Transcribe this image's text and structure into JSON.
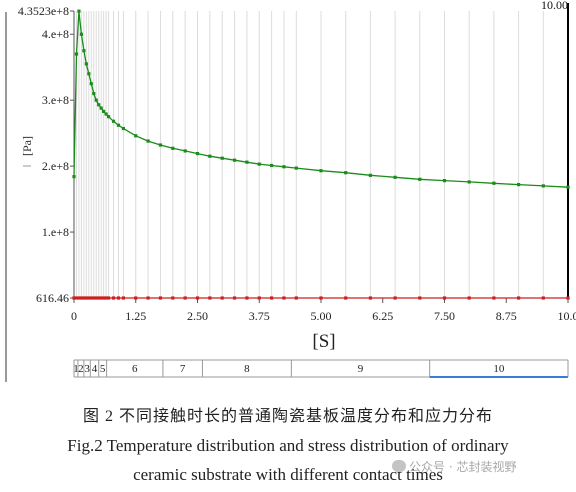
{
  "chart_data": {
    "type": "line",
    "ylabel": "[Pa]",
    "xlabel": "[S]",
    "xlim": [
      0,
      10
    ],
    "ylim": [
      616.46,
      435230000
    ],
    "x_ticks": [
      "0",
      "1.25",
      "2.50",
      "3.75",
      "5.00",
      "6.25",
      "7.50",
      "8.75",
      "10.0"
    ],
    "y_ticks": [
      {
        "label": "4.3523e+8",
        "value": 435230000
      },
      {
        "label": "4.e+8",
        "value": 400000000
      },
      {
        "label": "3.e+8",
        "value": 300000000
      },
      {
        "label": "2.e+8",
        "value": 200000000
      },
      {
        "label": "1.e+8",
        "value": 100000000
      },
      {
        "label": "616.46",
        "value": 616.46
      }
    ],
    "time_marker": "10.00",
    "grid": true,
    "series": [
      {
        "color": "#1a8c1a",
        "x": [
          0,
          0.05,
          0.1,
          0.15,
          0.2,
          0.25,
          0.3,
          0.35,
          0.4,
          0.45,
          0.5,
          0.55,
          0.6,
          0.65,
          0.7,
          0.8,
          0.9,
          1.0,
          1.25,
          1.5,
          1.75,
          2.0,
          2.25,
          2.5,
          2.75,
          3.0,
          3.25,
          3.5,
          3.75,
          4.0,
          4.25,
          4.5,
          5.0,
          5.5,
          6.0,
          6.5,
          7.0,
          7.5,
          8.0,
          8.5,
          9.0,
          9.5,
          10.0
        ],
        "values": [
          184000000,
          370000000,
          435000000,
          400000000,
          375000000,
          355000000,
          340000000,
          325000000,
          310000000,
          300000000,
          293000000,
          288000000,
          283000000,
          279000000,
          275000000,
          268000000,
          262000000,
          257000000,
          246000000,
          238000000,
          232000000,
          227000000,
          223000000,
          219000000,
          215000000,
          212000000,
          209000000,
          206000000,
          203000000,
          201000000,
          199000000,
          197000000,
          193000000,
          190000000,
          186000000,
          183000000,
          180000000,
          178000000,
          176000000,
          174000000,
          172000000,
          170000000,
          168000000
        ]
      },
      {
        "color": "#cc1f1f",
        "x": [
          0,
          0.05,
          0.1,
          0.15,
          0.2,
          0.25,
          0.3,
          0.35,
          0.4,
          0.45,
          0.5,
          0.55,
          0.6,
          0.65,
          0.7,
          0.8,
          0.9,
          1.0,
          1.25,
          1.5,
          1.75,
          2.0,
          2.25,
          2.5,
          2.75,
          3.0,
          3.25,
          3.5,
          3.75,
          4.0,
          4.25,
          4.5,
          5.0,
          5.5,
          6.0,
          6.5,
          7.0,
          7.5,
          8.0,
          8.5,
          9.0,
          9.5,
          10.0
        ],
        "values": [
          616.46,
          616.46,
          616.46,
          616.46,
          616.46,
          616.46,
          616.46,
          616.46,
          616.46,
          616.46,
          616.46,
          616.46,
          616.46,
          616.46,
          616.46,
          616.46,
          616.46,
          616.46,
          616.46,
          616.46,
          616.46,
          616.46,
          616.46,
          616.46,
          616.46,
          616.46,
          616.46,
          616.46,
          616.46,
          616.46,
          616.46,
          616.46,
          616.46,
          616.46,
          616.46,
          616.46,
          616.46,
          616.46,
          616.46,
          616.46,
          616.46,
          616.46,
          616.46
        ]
      }
    ],
    "timeline_steps": [
      {
        "label": "1",
        "start": 0.0,
        "end": 0.08
      },
      {
        "label": "2",
        "start": 0.08,
        "end": 0.2
      },
      {
        "label": "3",
        "start": 0.2,
        "end": 0.33
      },
      {
        "label": "4",
        "start": 0.33,
        "end": 0.5
      },
      {
        "label": "5",
        "start": 0.5,
        "end": 0.66
      },
      {
        "label": "6",
        "start": 0.66,
        "end": 1.8
      },
      {
        "label": "7",
        "start": 1.8,
        "end": 2.6
      },
      {
        "label": "8",
        "start": 2.6,
        "end": 4.4
      },
      {
        "label": "9",
        "start": 4.4,
        "end": 7.2
      },
      {
        "label": "10",
        "start": 7.2,
        "end": 10.0
      }
    ]
  },
  "caption": {
    "chinese": "图 2    不同接触时长的普通陶瓷基板温度分布和应力分布",
    "english_line1": "Fig.2    Temperature distribution and stress distribution of ordinary",
    "english_line2": "ceramic substrate with different contact times"
  },
  "watermark": "公众号 · 芯封装视野"
}
